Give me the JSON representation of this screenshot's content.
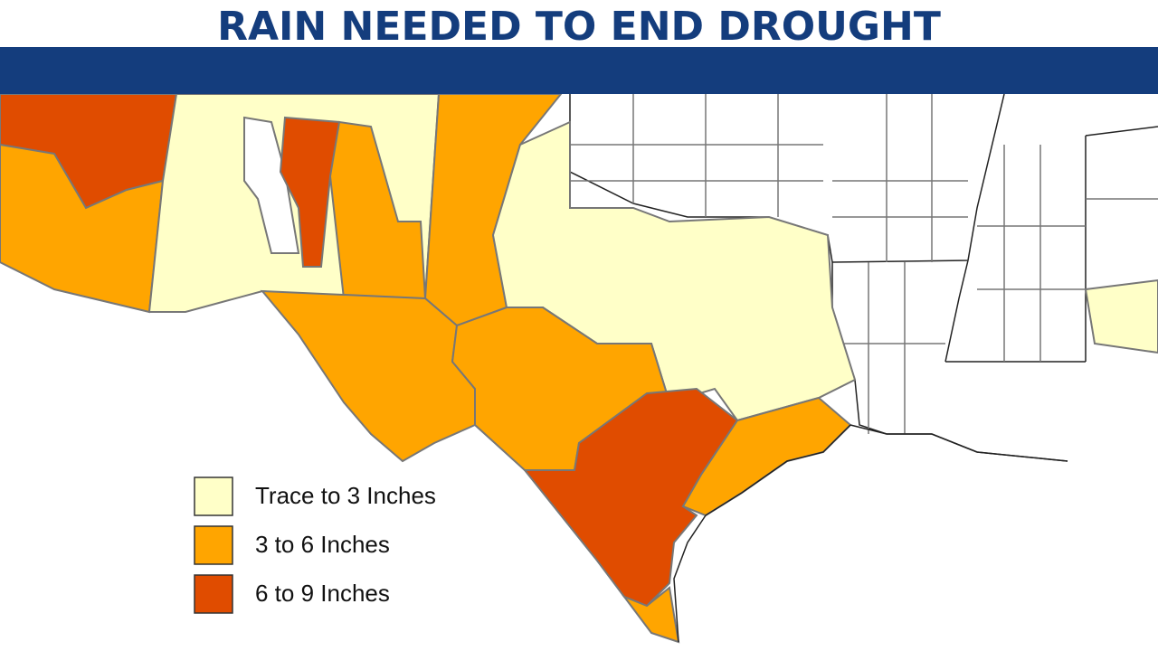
{
  "title": "RAIN NEEDED TO END DROUGHT",
  "legend": {
    "items": [
      {
        "label": "Trace to 3 Inches",
        "color": "#ffffc8"
      },
      {
        "label": "3 to 6 Inches",
        "color": "#ffa500"
      },
      {
        "label": "6 to 9 Inches",
        "color": "#e04c00"
      }
    ]
  }
}
